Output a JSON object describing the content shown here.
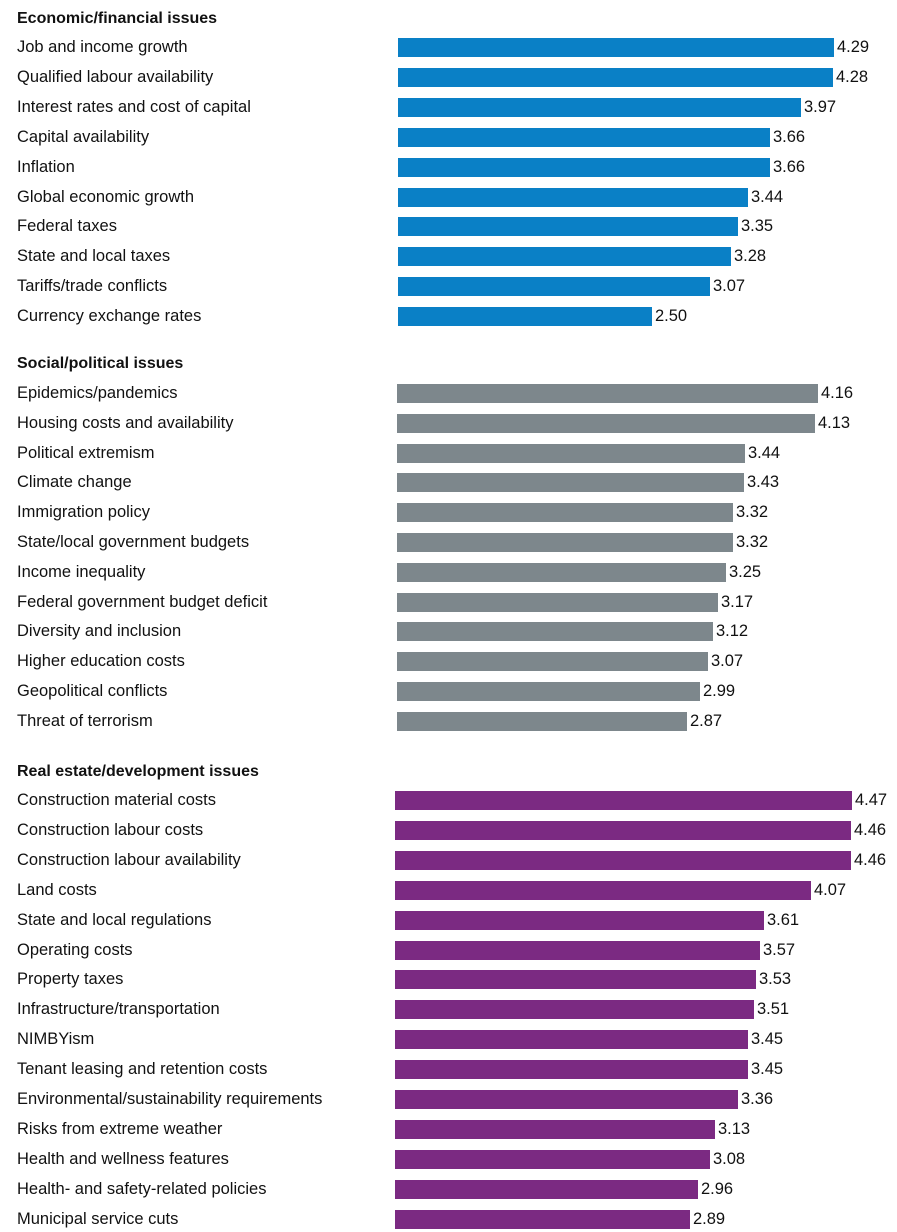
{
  "colors": {
    "economic": "#0a80c6",
    "social": "#7d878c",
    "real_estate": "#7b2a82"
  },
  "chart_data": [
    {
      "type": "bar",
      "orientation": "horizontal",
      "title": "Economic/financial issues",
      "color": "#0a80c6",
      "categories": [
        "Job and income growth",
        "Qualified labour availability",
        "Interest rates and cost of capital",
        "Capital availability",
        "Inflation",
        "Global economic growth",
        "Federal taxes",
        "State and local taxes",
        "Tariffs/trade conflicts",
        "Currency exchange rates"
      ],
      "values": [
        4.29,
        4.28,
        3.97,
        3.66,
        3.66,
        3.44,
        3.35,
        3.28,
        3.07,
        2.5
      ],
      "value_labels": [
        "4.29",
        "4.28",
        "3.97",
        "3.66",
        "3.66",
        "3.44",
        "3.35",
        "3.28",
        "3.07",
        "2.50"
      ]
    },
    {
      "type": "bar",
      "orientation": "horizontal",
      "title": "Social/political issues",
      "color": "#7d878c",
      "categories": [
        "Epidemics/pandemics",
        "Housing costs and availability",
        "Political extremism",
        "Climate change",
        "Immigration policy",
        "State/local government budgets",
        "Income inequality",
        "Federal government budget deficit",
        "Diversity and inclusion",
        "Higher education costs",
        "Geopolitical conflicts",
        "Threat of terrorism"
      ],
      "values": [
        4.16,
        4.13,
        3.44,
        3.43,
        3.32,
        3.32,
        3.25,
        3.17,
        3.12,
        3.07,
        2.99,
        2.87
      ],
      "value_labels": [
        "4.16",
        "4.13",
        "3.44",
        "3.43",
        "3.32",
        "3.32",
        "3.25",
        "3.17",
        "3.12",
        "3.07",
        "2.99",
        "2.87"
      ]
    },
    {
      "type": "bar",
      "orientation": "horizontal",
      "title": "Real estate/development issues",
      "color": "#7b2a82",
      "categories": [
        "Construction material costs",
        "Construction labour costs",
        "Construction labour availability",
        "Land costs",
        "State and local regulations",
        "Operating costs",
        "Property taxes",
        "Infrastructure/transportation",
        "NIMBYism",
        "Tenant leasing and retention costs",
        "Environmental/sustainability requirements",
        "Risks from extreme weather",
        "Health and wellness features",
        "Health- and safety-related policies",
        "Municipal service cuts"
      ],
      "values": [
        4.47,
        4.46,
        4.46,
        4.07,
        3.61,
        3.57,
        3.53,
        3.51,
        3.45,
        3.45,
        3.36,
        3.13,
        3.08,
        2.96,
        2.89
      ],
      "value_labels": [
        "4.47",
        "4.46",
        "4.46",
        "4.07",
        "3.61",
        "3.57",
        "3.53",
        "3.51",
        "3.45",
        "3.45",
        "3.36",
        "3.13",
        "3.08",
        "2.96",
        "2.89"
      ]
    }
  ]
}
